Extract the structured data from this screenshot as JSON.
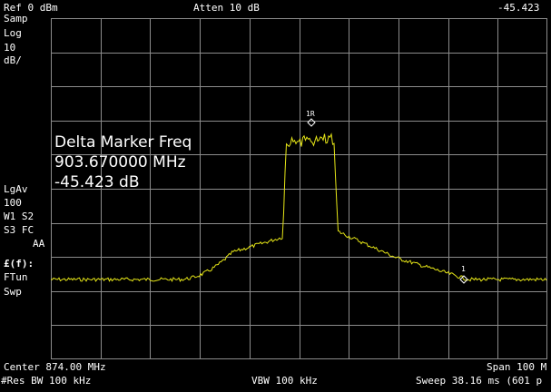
{
  "header": {
    "ref_level": "Ref 0 dBm",
    "attenuation": "Atten 10 dB",
    "marker_value": "-45.423"
  },
  "sidebar": {
    "detector": "Samp",
    "scale_type": "Log",
    "scale_value": "10",
    "scale_unit": "dB/",
    "average": "LgAv",
    "average_count": "100",
    "trace_line1": "W1  S2",
    "trace_line2": "S3  FC",
    "trace_line3": "AA",
    "func_label": "£(f):",
    "func_line1": "FTun",
    "func_line2": "Swp"
  },
  "marker_readout": {
    "title": "Delta Marker Freq",
    "frequency": "903.670000 MHz",
    "delta": "-45.423 dB"
  },
  "markers": {
    "ref_label": "1R",
    "delta_label": "1"
  },
  "footer": {
    "center": "Center 874.00 MHz",
    "span": "Span 100 M",
    "rbw": "#Res BW 100 kHz",
    "vbw": "VBW 100 kHz",
    "sweep": "Sweep 38.16 ms (601 p"
  },
  "colors": {
    "trace": "#e6e617",
    "grid": "#8c8c8c",
    "background": "#000000"
  }
}
